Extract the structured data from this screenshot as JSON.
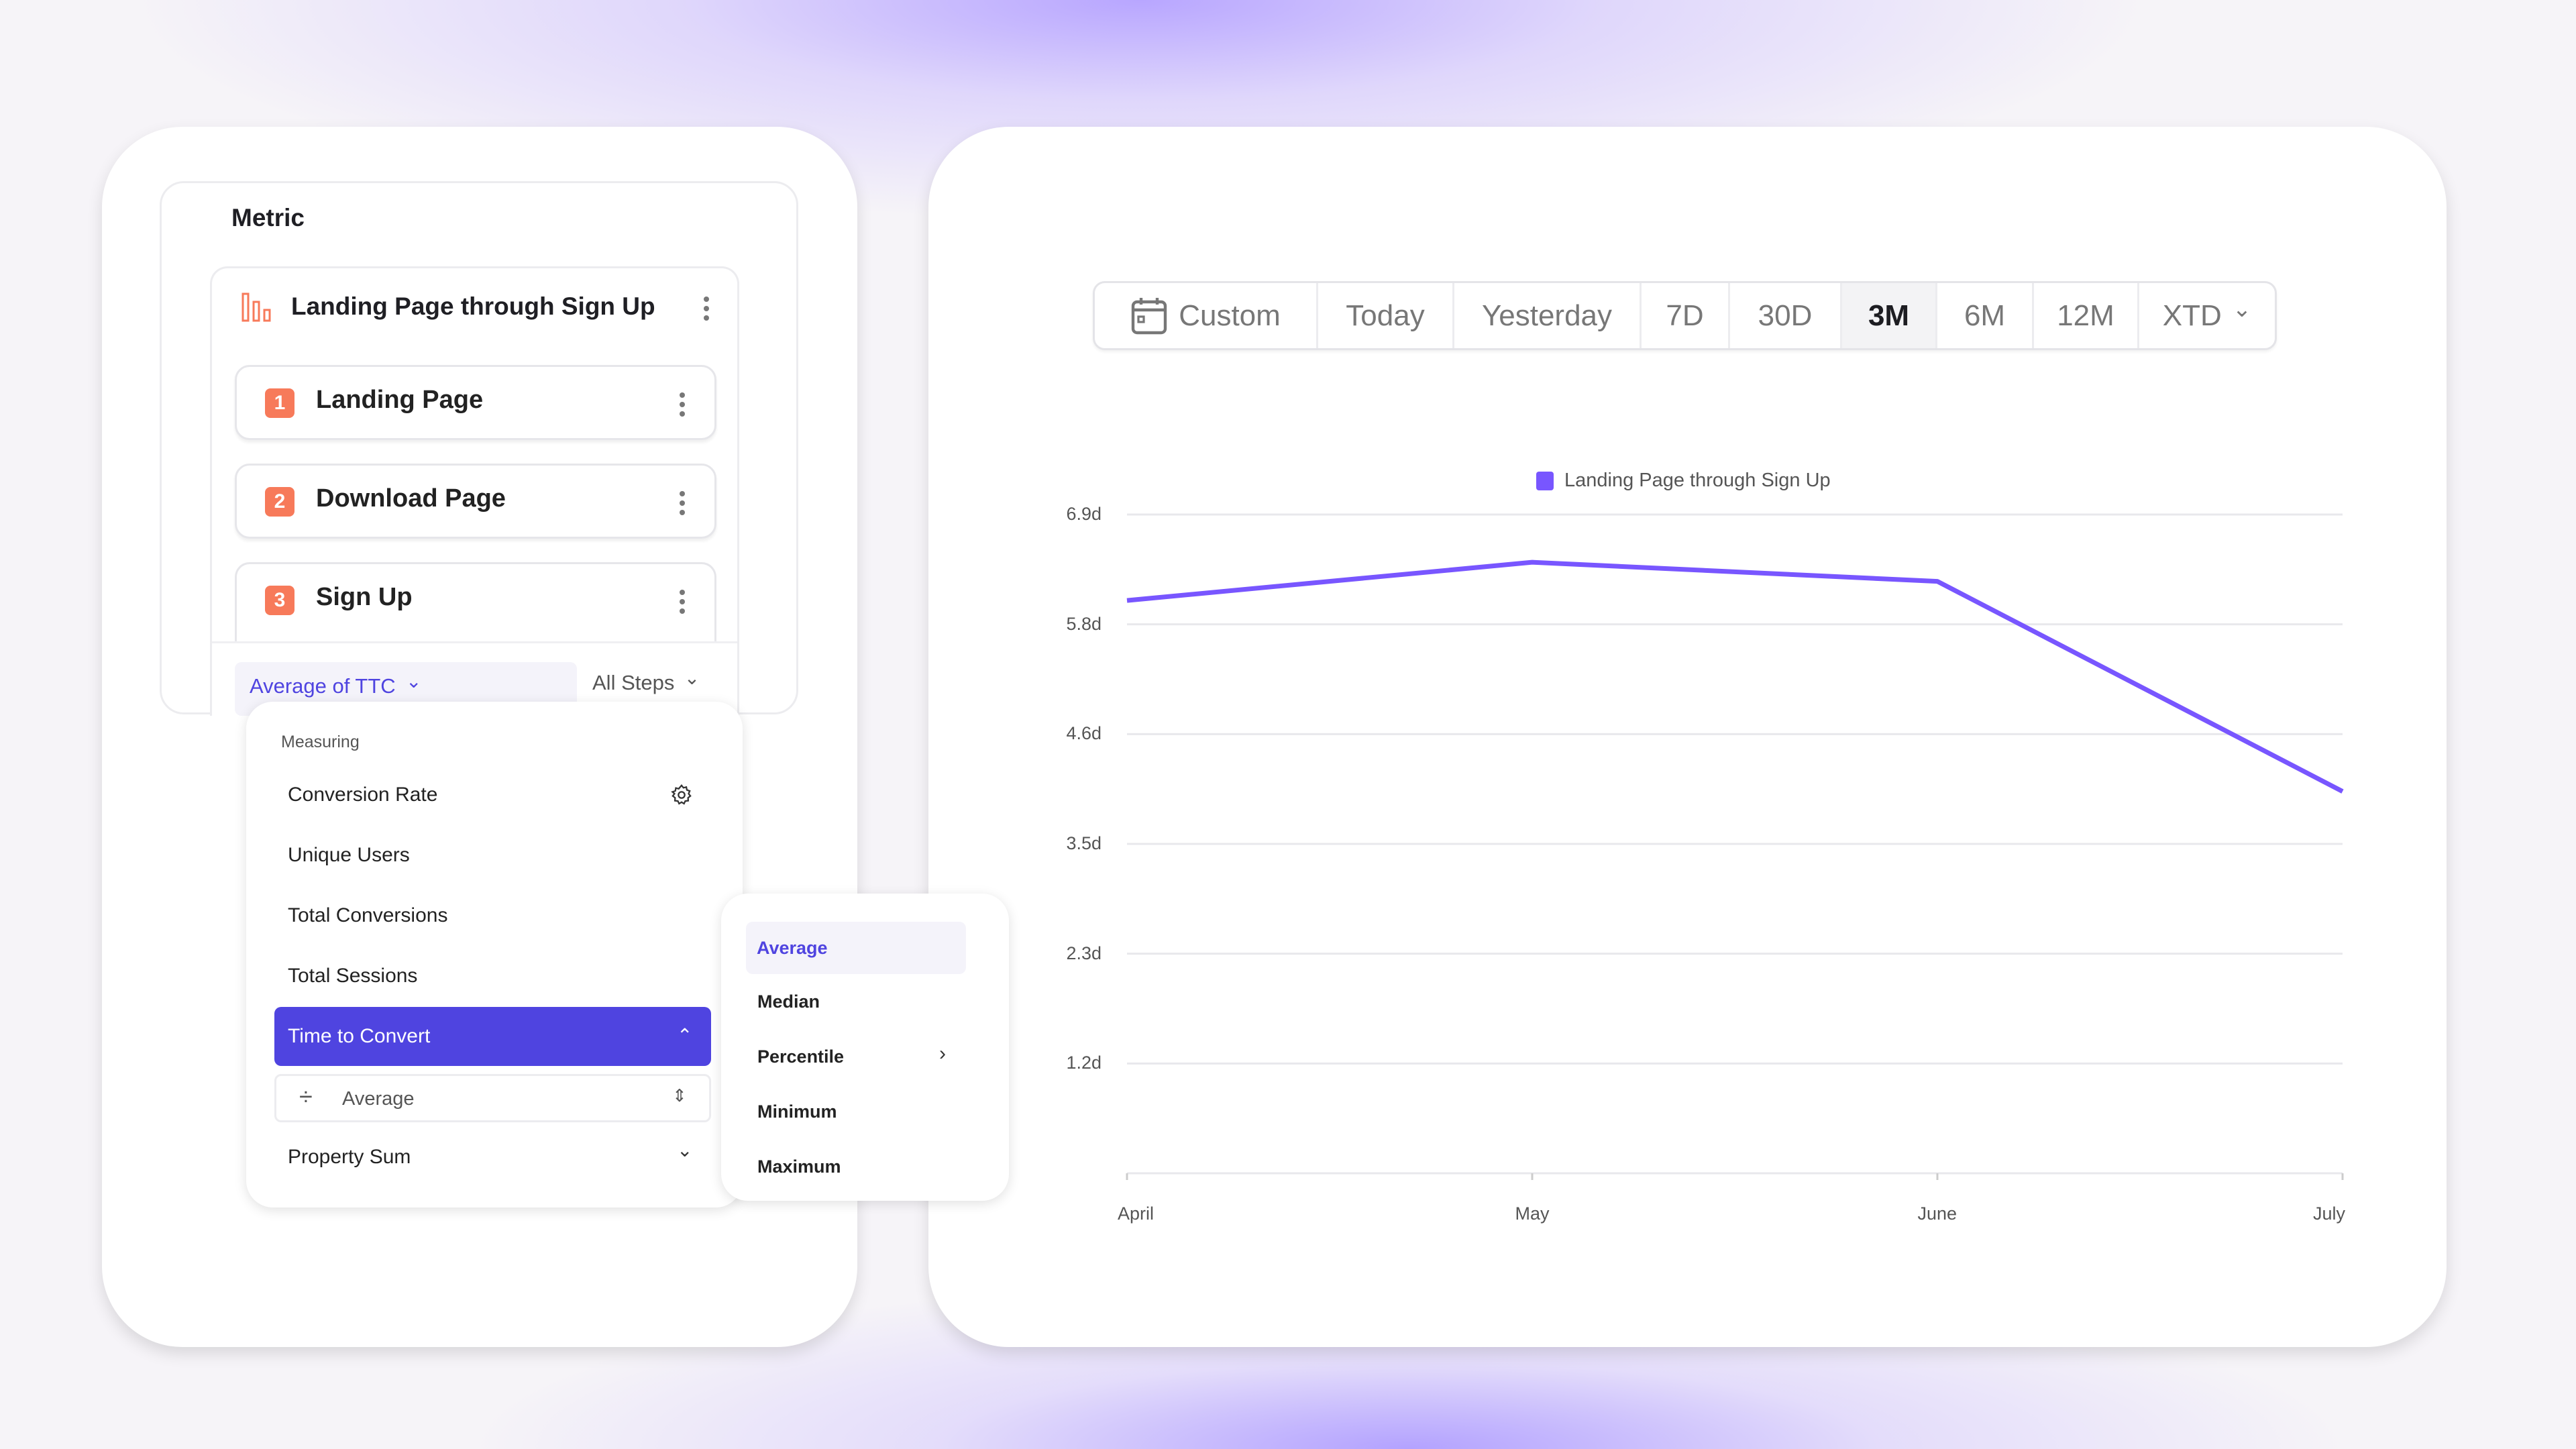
{
  "metric_panel": {
    "title": "Metric",
    "metric_name": "Landing Page through Sign Up",
    "steps": [
      {
        "number": "1",
        "label": "Landing Page"
      },
      {
        "number": "2",
        "label": "Download Page"
      },
      {
        "number": "3",
        "label": "Sign Up"
      }
    ],
    "aggregation_label": "Average of TTC",
    "steps_filter_label": "All Steps",
    "badge_color": "#f77a5a",
    "icon": "funnel-bars-icon"
  },
  "measuring_menu": {
    "heading": "Measuring",
    "items": [
      "Conversion Rate",
      "Unique Users",
      "Total Conversions",
      "Total Sessions",
      "Time to Convert",
      "Property Sum"
    ],
    "selected": "Time to Convert",
    "sub_select_value": "Average",
    "accent_color": "#4f44e0"
  },
  "aggregation_submenu": {
    "items": [
      "Average",
      "Median",
      "Percentile",
      "Minimum",
      "Maximum"
    ],
    "selected": "Average"
  },
  "date_range": {
    "options": [
      "Custom",
      "Today",
      "Yesterday",
      "7D",
      "30D",
      "3M",
      "6M",
      "12M",
      "XTD"
    ],
    "selected": "3M"
  },
  "chart_data": {
    "type": "line",
    "legend": [
      "Landing Page through Sign Up"
    ],
    "legend_placement": "top-center",
    "categories": [
      "April",
      "May",
      "June",
      "July"
    ],
    "series": [
      {
        "name": "Landing Page through Sign Up",
        "values": [
          6.0,
          6.4,
          6.2,
          4.0
        ],
        "color": "#7856ff"
      }
    ],
    "yticks": [
      1.15,
      2.3,
      3.45,
      4.6,
      5.75,
      6.9
    ],
    "ytick_labels": [
      "1.2d",
      "2.3d",
      "3.5d",
      "4.6d",
      "5.8d",
      "6.9d"
    ],
    "ylim": [
      0,
      6.9
    ],
    "grid": true
  }
}
